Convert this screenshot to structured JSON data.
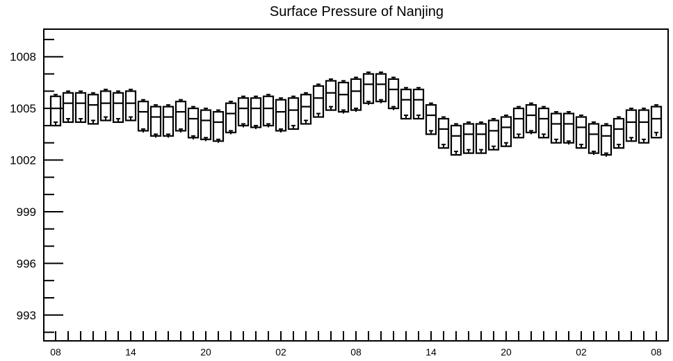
{
  "chart_data": {
    "type": "boxplot",
    "title": "Surface Pressure of Nanjing",
    "xlabel": "",
    "ylabel": "",
    "ylim": [
      991.5,
      1009.6
    ],
    "yticks": [
      993,
      996,
      999,
      1002,
      1005,
      1008
    ],
    "ytick_labels": [
      "993",
      "996",
      "999",
      "1002",
      "1005",
      "1008"
    ],
    "xtick_labels": [
      "08",
      "14",
      "20",
      "02",
      "08",
      "14",
      "20",
      "02",
      "08"
    ],
    "xtick_label_index": [
      0,
      6,
      12,
      18,
      24,
      30,
      36,
      42,
      48
    ],
    "num_steps": 49,
    "series": [
      {
        "whisker_max": [
          1005.8,
          1006.0,
          1006.0,
          1005.9,
          1006.1,
          1006.0,
          1006.1,
          1005.5,
          1005.2,
          1005.2,
          1005.5,
          1005.1,
          1005.0,
          1004.9,
          1005.4,
          1005.7,
          1005.7,
          1005.8,
          1005.6,
          1005.7,
          1005.9,
          1006.4,
          1006.7,
          1006.6,
          1006.8,
          1007.1,
          1007.1,
          1006.8,
          1006.2,
          1006.2,
          1005.3,
          1004.5,
          1004.1,
          1004.2,
          1004.2,
          1004.4,
          1004.6,
          1005.1,
          1005.3,
          1005.1,
          1004.8,
          1004.8,
          1004.6,
          1004.2,
          1004.1,
          1004.5,
          1005.0,
          1005.0,
          1005.2
        ],
        "q3": [
          1005.7,
          1005.9,
          1005.9,
          1005.8,
          1006.0,
          1005.9,
          1006.0,
          1005.4,
          1005.1,
          1005.1,
          1005.4,
          1005.0,
          1004.9,
          1004.8,
          1005.3,
          1005.6,
          1005.6,
          1005.7,
          1005.5,
          1005.6,
          1005.8,
          1006.3,
          1006.6,
          1006.5,
          1006.7,
          1007.0,
          1007.0,
          1006.7,
          1006.1,
          1006.1,
          1005.2,
          1004.4,
          1004.0,
          1004.1,
          1004.1,
          1004.3,
          1004.5,
          1005.0,
          1005.2,
          1005.0,
          1004.7,
          1004.7,
          1004.5,
          1004.1,
          1004.0,
          1004.4,
          1004.9,
          1004.9,
          1005.1
        ],
        "median": [
          1005.0,
          1005.3,
          1005.3,
          1005.2,
          1005.3,
          1005.3,
          1005.3,
          1004.8,
          1004.5,
          1004.5,
          1004.8,
          1004.4,
          1004.3,
          1004.2,
          1004.7,
          1005.0,
          1005.0,
          1005.0,
          1004.8,
          1004.9,
          1005.1,
          1005.6,
          1005.9,
          1005.8,
          1006.0,
          1006.4,
          1006.4,
          1006.1,
          1005.5,
          1005.5,
          1004.6,
          1003.8,
          1003.4,
          1003.5,
          1003.5,
          1003.7,
          1003.9,
          1004.4,
          1004.6,
          1004.4,
          1004.1,
          1004.1,
          1003.9,
          1003.5,
          1003.4,
          1003.8,
          1004.2,
          1004.2,
          1004.4
        ],
        "q1": [
          1004.0,
          1004.2,
          1004.2,
          1004.1,
          1004.3,
          1004.2,
          1004.3,
          1003.7,
          1003.4,
          1003.4,
          1003.7,
          1003.3,
          1003.2,
          1003.1,
          1003.6,
          1004.0,
          1003.9,
          1004.0,
          1003.7,
          1003.8,
          1004.1,
          1004.5,
          1004.9,
          1004.8,
          1004.9,
          1005.3,
          1005.4,
          1005.0,
          1004.4,
          1004.4,
          1003.5,
          1002.7,
          1002.3,
          1002.4,
          1002.4,
          1002.6,
          1002.8,
          1003.3,
          1003.6,
          1003.3,
          1003.0,
          1003.0,
          1002.7,
          1002.4,
          1002.3,
          1002.7,
          1003.1,
          1003.0,
          1003.3
        ],
        "whisker_min": [
          1004.2,
          1004.4,
          1004.4,
          1004.3,
          1004.5,
          1004.4,
          1004.5,
          1003.8,
          1003.5,
          1003.5,
          1003.8,
          1003.4,
          1003.3,
          1003.2,
          1003.7,
          1004.1,
          1004.0,
          1004.1,
          1003.8,
          1004.0,
          1004.3,
          1004.7,
          1005.1,
          1004.9,
          1005.0,
          1005.4,
          1005.5,
          1005.1,
          1004.6,
          1004.6,
          1003.7,
          1002.9,
          1002.5,
          1002.6,
          1002.6,
          1002.8,
          1003.0,
          1003.5,
          1003.7,
          1003.5,
          1003.2,
          1003.1,
          1002.9,
          1002.5,
          1002.4,
          1002.9,
          1003.3,
          1003.2,
          1003.6
        ]
      }
    ]
  }
}
